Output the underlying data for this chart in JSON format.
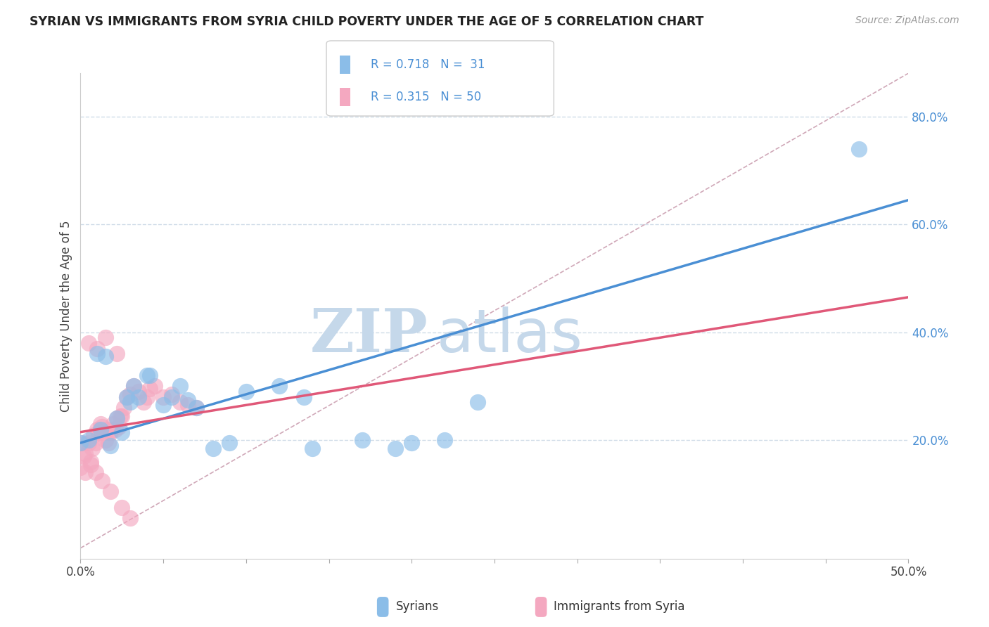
{
  "title": "SYRIAN VS IMMIGRANTS FROM SYRIA CHILD POVERTY UNDER THE AGE OF 5 CORRELATION CHART",
  "source_text": "Source: ZipAtlas.com",
  "ylabel": "Child Poverty Under the Age of 5",
  "xlim": [
    0.0,
    0.5
  ],
  "ylim": [
    -0.02,
    0.88
  ],
  "xticks": [
    0.0,
    0.05,
    0.1,
    0.15,
    0.2,
    0.25,
    0.3,
    0.35,
    0.4,
    0.45,
    0.5
  ],
  "ytick_right_labels": [
    "20.0%",
    "40.0%",
    "60.0%",
    "80.0%"
  ],
  "ytick_right_values": [
    0.2,
    0.4,
    0.6,
    0.8
  ],
  "watermark_ZIP": "ZIP",
  "watermark_atlas": "atlas",
  "watermark_color": "#c5d8ea",
  "background_color": "#ffffff",
  "grid_color": "#d0dce8",
  "syrians_color": "#8bbde8",
  "immigrants_color": "#f4a8c0",
  "syrians_line_color": "#4a8fd4",
  "immigrants_line_color": "#e05878",
  "ref_line_color": "#d0a8b8",
  "legend_R_syrians": "0.718",
  "legend_N_syrians": "31",
  "legend_R_immigrants": "0.315",
  "legend_N_immigrants": "50",
  "blue_line_x0": 0.0,
  "blue_line_y0": 0.195,
  "blue_line_x1": 0.5,
  "blue_line_y1": 0.645,
  "pink_line_x0": 0.0,
  "pink_line_y0": 0.215,
  "pink_line_x1": 0.1,
  "pink_line_y1": 0.265,
  "syrians_x": [
    0.0,
    0.005,
    0.012,
    0.018,
    0.022,
    0.025,
    0.028,
    0.03,
    0.035,
    0.04,
    0.05,
    0.055,
    0.06,
    0.065,
    0.07,
    0.08,
    0.09,
    0.1,
    0.12,
    0.14,
    0.17,
    0.19,
    0.2,
    0.22,
    0.24,
    0.47,
    0.01,
    0.015,
    0.032,
    0.042,
    0.135
  ],
  "syrians_y": [
    0.195,
    0.2,
    0.22,
    0.19,
    0.24,
    0.215,
    0.28,
    0.27,
    0.28,
    0.32,
    0.265,
    0.28,
    0.3,
    0.275,
    0.26,
    0.185,
    0.195,
    0.29,
    0.3,
    0.185,
    0.2,
    0.185,
    0.195,
    0.2,
    0.27,
    0.74,
    0.36,
    0.355,
    0.3,
    0.32,
    0.28
  ],
  "immigrants_x": [
    0.0,
    0.002,
    0.003,
    0.005,
    0.006,
    0.007,
    0.008,
    0.009,
    0.01,
    0.011,
    0.012,
    0.013,
    0.014,
    0.015,
    0.016,
    0.017,
    0.018,
    0.019,
    0.02,
    0.021,
    0.022,
    0.023,
    0.024,
    0.025,
    0.026,
    0.028,
    0.03,
    0.032,
    0.035,
    0.038,
    0.04,
    0.042,
    0.045,
    0.05,
    0.055,
    0.06,
    0.065,
    0.07,
    0.001,
    0.003,
    0.006,
    0.009,
    0.013,
    0.018,
    0.025,
    0.03,
    0.005,
    0.01,
    0.015,
    0.022
  ],
  "immigrants_y": [
    0.15,
    0.17,
    0.14,
    0.195,
    0.16,
    0.185,
    0.21,
    0.195,
    0.22,
    0.215,
    0.23,
    0.225,
    0.215,
    0.2,
    0.22,
    0.195,
    0.215,
    0.22,
    0.23,
    0.22,
    0.24,
    0.225,
    0.245,
    0.245,
    0.26,
    0.28,
    0.285,
    0.3,
    0.29,
    0.27,
    0.28,
    0.295,
    0.3,
    0.28,
    0.285,
    0.27,
    0.265,
    0.26,
    0.195,
    0.175,
    0.155,
    0.14,
    0.125,
    0.105,
    0.075,
    0.055,
    0.38,
    0.37,
    0.39,
    0.36
  ]
}
